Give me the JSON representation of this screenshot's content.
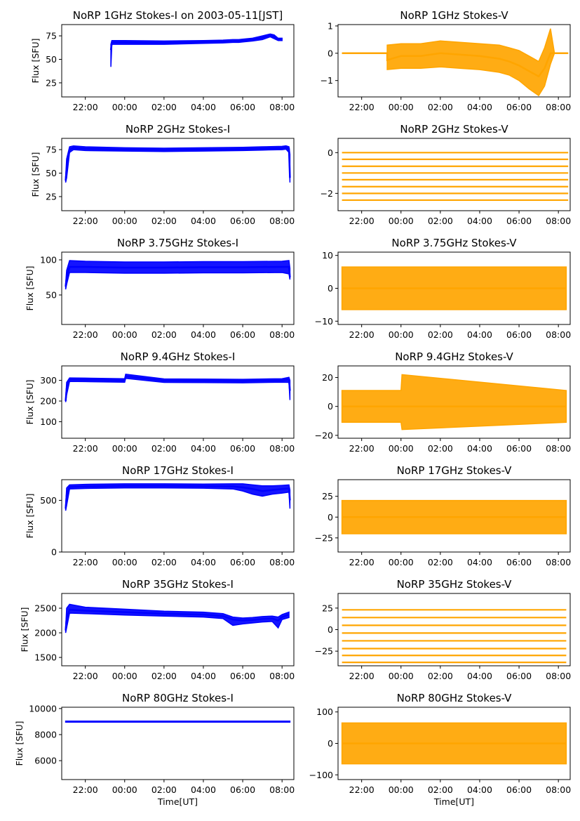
{
  "figure": {
    "x_tick_labels": [
      "22:00",
      "00:00",
      "02:00",
      "04:00",
      "06:00",
      "08:00"
    ],
    "xlabel": "Time[UT]",
    "ylabel": "Flux [SFU]",
    "colors": {
      "stokes_i": "#0000ff",
      "stokes_v": "#ffa500",
      "axes": "#000000",
      "background": "#ffffff"
    }
  },
  "chart_data": [
    {
      "type": "scatter",
      "title": "NoRP 1GHz Stokes-I on 2003-05-11[JST]",
      "ylabel": "Flux [SFU]",
      "xlabel": "",
      "ylim": [
        10,
        87
      ],
      "yticks": [
        25,
        50,
        75
      ],
      "xlim_hours": [
        20.8,
        32.6
      ],
      "grid": false,
      "color": "#0000ff",
      "series": [
        {
          "x_hours": [
            23.3,
            23.35,
            24,
            26,
            28,
            29,
            29.5,
            29.8,
            30,
            30.5,
            31,
            31.4,
            31.6,
            31.8,
            32
          ],
          "y": [
            60,
            68,
            68,
            67.5,
            68.5,
            69,
            69,
            69.5,
            70,
            71,
            73,
            76,
            74,
            71,
            71
          ],
          "y_low": [
            42,
            66,
            66,
            66,
            67,
            67.5,
            68,
            68,
            68.5,
            69.5,
            71,
            74,
            72,
            70,
            70
          ],
          "y_high": [
            66,
            70,
            70,
            69.5,
            70,
            70.5,
            71,
            71,
            71.5,
            72.5,
            75,
            77,
            76,
            72.5,
            72.5
          ]
        }
      ]
    },
    {
      "type": "scatter",
      "title": "NoRP 1GHz Stokes-V",
      "ylabel": "",
      "xlabel": "",
      "ylim": [
        -1.6,
        1.05
      ],
      "yticks": [
        -1,
        0,
        1
      ],
      "xlim_hours": [
        20.8,
        32.6
      ],
      "grid": false,
      "color": "#ffa500",
      "series": [
        {
          "x_hours": [
            21,
            23.3,
            23.3,
            24,
            25,
            26,
            27,
            28,
            29,
            29.5,
            30,
            30.5,
            31,
            31.3,
            31.6,
            31.8,
            32,
            32.5
          ],
          "y": [
            0,
            0,
            -0.25,
            -0.1,
            -0.1,
            0,
            -0.05,
            -0.1,
            -0.2,
            -0.3,
            -0.45,
            -0.65,
            -0.85,
            -0.55,
            0,
            0,
            0,
            0
          ],
          "y_low": [
            0,
            0,
            -0.6,
            -0.55,
            -0.55,
            -0.5,
            -0.55,
            -0.6,
            -0.7,
            -0.8,
            -1.0,
            -1.3,
            -1.55,
            -1.2,
            -0.4,
            0,
            0,
            0
          ],
          "y_high": [
            0,
            0,
            0.3,
            0.35,
            0.35,
            0.45,
            0.4,
            0.35,
            0.3,
            0.2,
            0.1,
            -0.1,
            -0.3,
            0.2,
            0.9,
            0,
            0,
            0
          ]
        }
      ]
    },
    {
      "type": "scatter",
      "title": "NoRP 2GHz Stokes-I",
      "ylabel": "Flux [SFU]",
      "xlabel": "",
      "ylim": [
        10,
        87
      ],
      "yticks": [
        25,
        50,
        75
      ],
      "xlim_hours": [
        20.8,
        32.6
      ],
      "grid": false,
      "color": "#0000ff",
      "series": [
        {
          "x_hours": [
            21,
            21.05,
            21.2,
            21.4,
            22,
            24,
            26,
            28,
            30,
            31,
            32,
            32.2,
            32.35,
            32.4
          ],
          "y": [
            42,
            55,
            75,
            77,
            76,
            75,
            74.5,
            75,
            75.5,
            76,
            76.5,
            77,
            76,
            45
          ],
          "y_low": [
            40,
            45,
            72,
            75,
            74,
            73.5,
            73,
            73.5,
            74,
            74.5,
            75,
            75.5,
            72,
            40
          ],
          "y_high": [
            46,
            65,
            78,
            79,
            78,
            77,
            76.5,
            77,
            77.5,
            78,
            78.5,
            79,
            78,
            70
          ]
        }
      ]
    },
    {
      "type": "scatter",
      "title": "NoRP 2GHz Stokes-V",
      "ylabel": "",
      "xlabel": "",
      "ylim": [
        -2.85,
        0.7
      ],
      "yticks": [
        -2,
        0
      ],
      "xlim_hours": [
        20.8,
        32.6
      ],
      "grid": false,
      "color": "#ffa500",
      "levels": [
        0,
        -0.33,
        -0.67,
        -1.0,
        -1.33,
        -1.67,
        -2.0,
        -2.33
      ],
      "x_range_hours": [
        21,
        32.5
      ]
    },
    {
      "type": "scatter",
      "title": "NoRP 3.75GHz Stokes-I",
      "ylabel": "Flux [SFU]",
      "xlabel": "",
      "ylim": [
        8,
        111
      ],
      "yticks": [
        50,
        100
      ],
      "xlim_hours": [
        20.8,
        32.6
      ],
      "grid": false,
      "color": "#0000ff",
      "series": [
        {
          "x_hours": [
            21,
            21.05,
            21.2,
            22,
            24,
            26,
            28,
            30,
            32,
            32.35,
            32.4
          ],
          "y": [
            62,
            75,
            90,
            90,
            89,
            89,
            89.5,
            89.5,
            90,
            90,
            75
          ],
          "y_low": [
            58,
            65,
            82,
            82,
            81,
            81,
            81.5,
            81.5,
            82,
            80,
            72
          ],
          "y_high": [
            66,
            85,
            99,
            98,
            97,
            97,
            97.5,
            97.5,
            98,
            99,
            88
          ]
        }
      ]
    },
    {
      "type": "scatter",
      "title": "NoRP 3.75GHz Stokes-V",
      "ylabel": "",
      "xlabel": "",
      "ylim": [
        -11,
        11
      ],
      "yticks": [
        -10,
        0,
        10
      ],
      "xlim_hours": [
        20.8,
        32.6
      ],
      "grid": false,
      "color": "#ffa500",
      "series": [
        {
          "x_hours": [
            21,
            32.4
          ],
          "y": [
            0,
            0
          ],
          "y_low": [
            -6.5,
            -6.5
          ],
          "y_high": [
            6.5,
            6.5
          ]
        }
      ]
    },
    {
      "type": "scatter",
      "title": "NoRP 9.4GHz Stokes-I",
      "ylabel": "Flux [SFU]",
      "xlabel": "",
      "ylim": [
        20,
        370
      ],
      "yticks": [
        100,
        200,
        300
      ],
      "xlim_hours": [
        20.8,
        32.6
      ],
      "grid": false,
      "color": "#0000ff",
      "series": [
        {
          "x_hours": [
            21,
            21.05,
            21.2,
            22,
            24,
            24.05,
            26,
            28,
            30,
            32,
            32.35,
            32.4
          ],
          "y": [
            200,
            260,
            305,
            303,
            300,
            320,
            299,
            298,
            297,
            300,
            305,
            250
          ],
          "y_low": [
            195,
            230,
            295,
            294,
            291,
            310,
            290,
            289,
            288,
            291,
            290,
            205
          ],
          "y_high": [
            210,
            290,
            312,
            311,
            308,
            330,
            307,
            306,
            305,
            308,
            315,
            300
          ]
        }
      ]
    },
    {
      "type": "scatter",
      "title": "NoRP 9.4GHz Stokes-V",
      "ylabel": "",
      "xlabel": "",
      "ylim": [
        -22,
        28
      ],
      "yticks": [
        -20,
        0,
        20
      ],
      "xlim_hours": [
        20.8,
        32.6
      ],
      "grid": false,
      "color": "#ffa500",
      "series": [
        {
          "x_hours": [
            21,
            24,
            24.05,
            32.4
          ],
          "y": [
            0,
            0,
            0,
            0
          ],
          "y_low": [
            -11,
            -11,
            -16,
            -11
          ],
          "y_high": [
            11,
            11,
            22,
            11
          ]
        }
      ]
    },
    {
      "type": "scatter",
      "title": "NoRP 17GHz Stokes-I",
      "ylabel": "Flux [SFU]",
      "xlabel": "",
      "ylim": [
        0,
        700
      ],
      "yticks": [
        0,
        500
      ],
      "xlim_hours": [
        20.8,
        32.6
      ],
      "grid": false,
      "color": "#0000ff",
      "series": [
        {
          "x_hours": [
            21,
            21.05,
            21.2,
            22,
            24,
            26,
            28,
            29.5,
            30,
            30.5,
            31,
            31.5,
            32,
            32.35,
            32.4
          ],
          "y": [
            420,
            550,
            630,
            635,
            640,
            640,
            638,
            635,
            625,
            610,
            590,
            600,
            610,
            615,
            500
          ],
          "y_low": [
            400,
            450,
            610,
            615,
            620,
            620,
            618,
            610,
            590,
            560,
            540,
            560,
            570,
            580,
            420
          ],
          "y_high": [
            450,
            620,
            650,
            655,
            660,
            660,
            658,
            660,
            660,
            650,
            640,
            640,
            645,
            650,
            600
          ]
        }
      ]
    },
    {
      "type": "scatter",
      "title": "NoRP 17GHz Stokes-V",
      "ylabel": "",
      "xlabel": "",
      "ylim": [
        -42,
        45
      ],
      "yticks": [
        -25,
        0,
        25
      ],
      "xlim_hours": [
        20.8,
        32.6
      ],
      "grid": false,
      "color": "#ffa500",
      "series": [
        {
          "x_hours": [
            21,
            32.4
          ],
          "y": [
            0,
            0
          ],
          "y_low": [
            -20,
            -20
          ],
          "y_high": [
            20,
            20
          ]
        }
      ]
    },
    {
      "type": "scatter",
      "title": "NoRP 35GHz Stokes-I",
      "ylabel": "Flux [SFU]",
      "xlabel": "",
      "ylim": [
        1330,
        2800
      ],
      "yticks": [
        1500,
        2000,
        2500
      ],
      "xlim_hours": [
        20.8,
        32.6
      ],
      "grid": false,
      "color": "#0000ff",
      "series": [
        {
          "x_hours": [
            21,
            21.05,
            21.2,
            22,
            24,
            26,
            28,
            29,
            29.5,
            30,
            30.5,
            31,
            31.5,
            31.8,
            32,
            32.35
          ],
          "y": [
            2050,
            2300,
            2470,
            2450,
            2420,
            2390,
            2370,
            2340,
            2270,
            2250,
            2260,
            2280,
            2290,
            2250,
            2320,
            2370
          ],
          "y_low": [
            2000,
            2100,
            2400,
            2390,
            2360,
            2340,
            2320,
            2290,
            2150,
            2180,
            2200,
            2220,
            2230,
            2100,
            2270,
            2310
          ],
          "y_high": [
            2100,
            2500,
            2580,
            2520,
            2480,
            2440,
            2420,
            2390,
            2320,
            2300,
            2310,
            2330,
            2340,
            2320,
            2370,
            2420
          ]
        }
      ]
    },
    {
      "type": "scatter",
      "title": "NoRP 35GHz Stokes-V",
      "ylabel": "",
      "xlabel": "",
      "ylim": [
        -42,
        42
      ],
      "yticks": [
        -25,
        0,
        25
      ],
      "xlim_hours": [
        20.8,
        32.6
      ],
      "grid": false,
      "color": "#ffa500",
      "levels": [
        23,
        14,
        5,
        -4,
        -13,
        -22,
        -30,
        -38
      ],
      "x_range_hours": [
        21,
        32.4
      ]
    },
    {
      "type": "scatter",
      "title": "NoRP 80GHz Stokes-I",
      "ylabel": "Flux [SFU]",
      "xlabel": "Time[UT]",
      "ylim": [
        4550,
        10100
      ],
      "yticks": [
        6000,
        8000,
        10000
      ],
      "xlim_hours": [
        20.8,
        32.6
      ],
      "grid": false,
      "color": "#0000ff",
      "series": [
        {
          "x_hours": [
            21,
            32.4
          ],
          "y": [
            9000,
            9000
          ],
          "y_low": [
            8960,
            8960
          ],
          "y_high": [
            9040,
            9040
          ]
        }
      ]
    },
    {
      "type": "scatter",
      "title": "NoRP 80GHz Stokes-V",
      "ylabel": "",
      "xlabel": "Time[UT]",
      "ylim": [
        -115,
        115
      ],
      "yticks": [
        -100,
        0,
        100
      ],
      "xlim_hours": [
        20.8,
        32.6
      ],
      "grid": false,
      "color": "#ffa500",
      "series": [
        {
          "x_hours": [
            21,
            32.4
          ],
          "y": [
            0,
            0
          ],
          "y_low": [
            -65,
            -65
          ],
          "y_high": [
            65,
            65
          ]
        }
      ]
    }
  ]
}
